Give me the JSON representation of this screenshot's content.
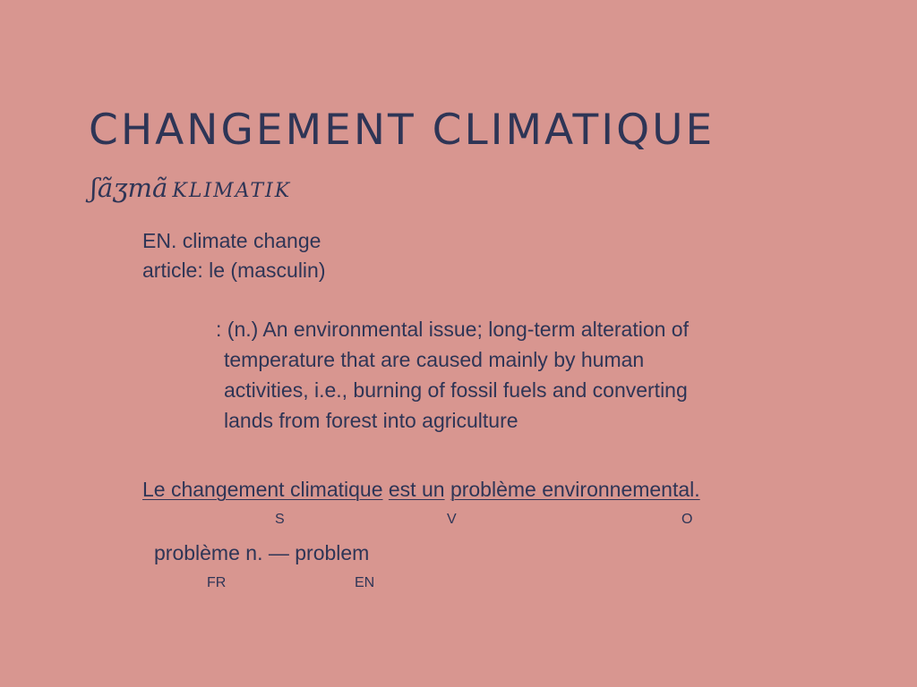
{
  "title": "CHANGEMENT CLIMATIQUE",
  "pronunciation": {
    "main": "ʃãʒmã",
    "rest": "KLIMATIK"
  },
  "en_translation": "EN. climate change",
  "article": "article: le (masculin)",
  "definition": {
    "prefix": ": (n.) An environmental issue; long-term alteration of",
    "lines": [
      "temperature that are caused mainly by human",
      "activities, i.e., burning of fossil fuels and converting",
      "lands from forest into agriculture"
    ]
  },
  "sentence": {
    "subject": "Le changement climatique",
    "verb": "est un",
    "object": "problème environnemental.",
    "subject_label": "S",
    "verb_label": "V",
    "object_label": "O"
  },
  "gloss": {
    "text": "problème n. — problem",
    "fr_label": "FR",
    "en_label": "EN"
  }
}
